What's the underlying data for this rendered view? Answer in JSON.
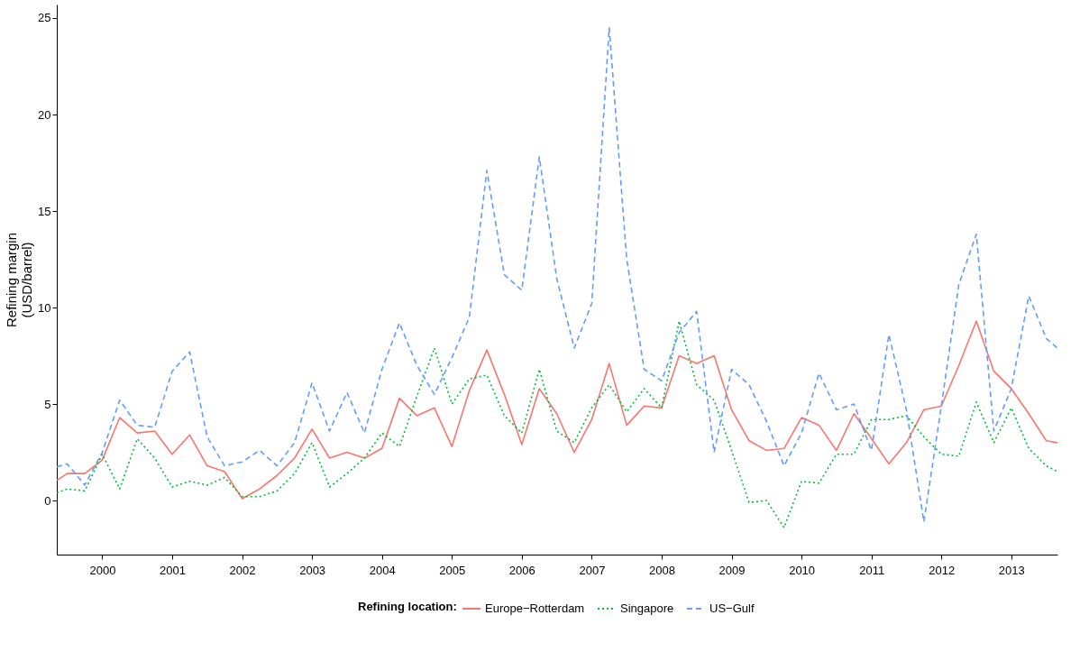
{
  "chart_data": {
    "type": "line",
    "ylabel": "Refining margin\n(USD/barrel)",
    "legend_title": "Refining location:",
    "legend": "bottom",
    "grid": false,
    "x": [
      1999.35,
      1999.5,
      1999.75,
      2000,
      2000.25,
      2000.5,
      2000.75,
      2001,
      2001.25,
      2001.5,
      2001.75,
      2002,
      2002.25,
      2002.5,
      2002.75,
      2003,
      2003.25,
      2003.5,
      2003.75,
      2004,
      2004.25,
      2004.5,
      2004.75,
      2005,
      2005.25,
      2005.5,
      2005.75,
      2006,
      2006.25,
      2006.5,
      2006.75,
      2007,
      2007.25,
      2007.5,
      2007.75,
      2008,
      2008.25,
      2008.5,
      2008.75,
      2009,
      2009.25,
      2009.5,
      2009.75,
      2010,
      2010.25,
      2010.5,
      2010.75,
      2011,
      2011.25,
      2011.5,
      2011.75,
      2012,
      2012.25,
      2012.5,
      2012.75,
      2013,
      2013.25,
      2013.5,
      2013.66
    ],
    "xlim": [
      1999.35,
      2013.66
    ],
    "xticks": [
      2000,
      2001,
      2002,
      2003,
      2004,
      2005,
      2006,
      2007,
      2008,
      2009,
      2010,
      2011,
      2012,
      2013
    ],
    "ylim": [
      -2.8,
      25.7
    ],
    "yticks": [
      0,
      5,
      10,
      15,
      20,
      25
    ],
    "series": [
      {
        "name": "Europe−Rotterdam",
        "color": "#f8766d",
        "line_style": "solid",
        "values": [
          1.05,
          1.4,
          1.4,
          2.1,
          4.3,
          3.5,
          3.6,
          2.4,
          3.4,
          1.8,
          1.5,
          0.1,
          0.6,
          1.3,
          2.2,
          3.7,
          2.2,
          2.5,
          2.2,
          2.7,
          5.3,
          4.4,
          4.8,
          2.8,
          5.7,
          7.8,
          5.5,
          2.9,
          5.8,
          4.5,
          2.5,
          4.2,
          7.1,
          3.9,
          4.9,
          4.8,
          7.5,
          7.1,
          7.5,
          4.7,
          3.1,
          2.6,
          2.7,
          4.3,
          3.9,
          2.6,
          4.5,
          3.2,
          1.9,
          3.0,
          4.7,
          4.9,
          7.0,
          9.3,
          6.7,
          5.8,
          4.5,
          3.1,
          3.0
        ]
      },
      {
        "name": "Singapore",
        "color": "#00ba38",
        "line_style": "dotted",
        "values": [
          0.4,
          0.6,
          0.5,
          2.4,
          0.6,
          3.2,
          2.2,
          0.7,
          1.0,
          0.8,
          1.2,
          0.2,
          0.2,
          0.5,
          1.4,
          3.0,
          0.7,
          1.4,
          2.2,
          3.5,
          2.8,
          5.4,
          7.9,
          5.0,
          6.3,
          6.5,
          4.4,
          3.5,
          6.8,
          3.6,
          3.0,
          4.8,
          6.0,
          4.6,
          5.8,
          4.8,
          9.3,
          6.0,
          5.2,
          2.6,
          -0.1,
          0.0,
          -1.4,
          1.0,
          0.9,
          2.4,
          2.4,
          4.2,
          4.2,
          4.4,
          3.3,
          2.4,
          2.3,
          5.1,
          3.0,
          4.8,
          2.7,
          1.8,
          1.5
        ]
      },
      {
        "name": "US−Gulf",
        "color": "#619cff",
        "line_style": "dashed",
        "values": [
          1.75,
          1.9,
          0.8,
          2.5,
          5.2,
          3.9,
          3.8,
          6.7,
          7.7,
          3.3,
          1.8,
          2.0,
          2.6,
          1.8,
          3.0,
          6.1,
          3.6,
          5.6,
          3.5,
          6.8,
          9.2,
          7.0,
          5.5,
          7.4,
          9.5,
          17.1,
          11.7,
          10.9,
          17.8,
          11.5,
          7.9,
          10.2,
          24.5,
          12.5,
          6.8,
          6.2,
          8.7,
          9.8,
          2.5,
          6.8,
          6.0,
          4.1,
          1.8,
          3.5,
          6.6,
          4.7,
          5.0,
          2.6,
          8.6,
          4.7,
          -1.1,
          4.9,
          11.2,
          13.8,
          3.6,
          5.8,
          10.6,
          8.4,
          7.9
        ]
      }
    ]
  }
}
